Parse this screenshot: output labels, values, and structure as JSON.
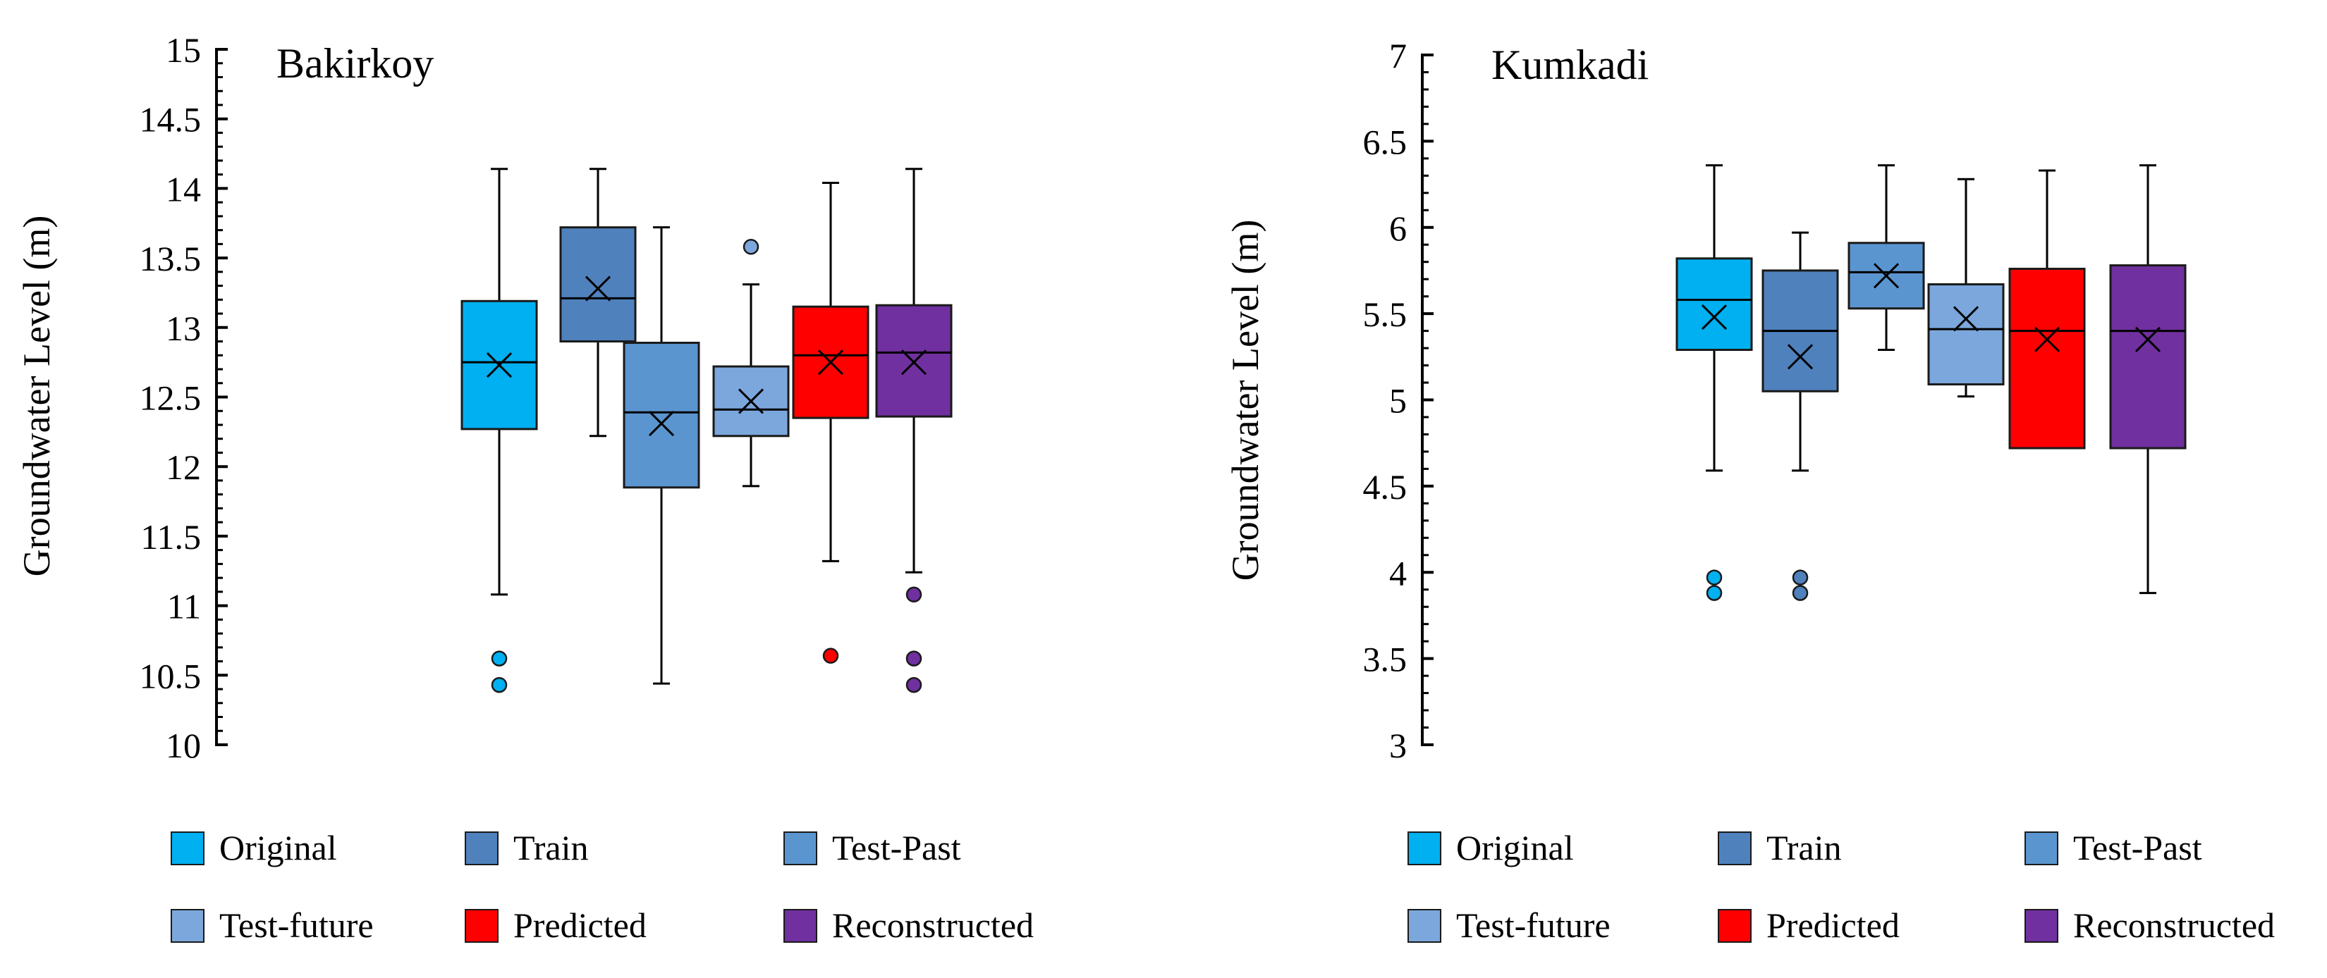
{
  "chart_data": [
    {
      "type": "box",
      "title": "Bakirkoy",
      "ylabel": "Groundwater Level (m)",
      "ylim": [
        10,
        15
      ],
      "yticks": [
        "10",
        "10.5",
        "11",
        "11.5",
        "12",
        "12.5",
        "13",
        "13.5",
        "14",
        "14.5",
        "15"
      ],
      "grid": false,
      "legend_position": "bottom",
      "series": [
        {
          "name": "Original",
          "color": "#00b0f0",
          "min": 11.08,
          "q1": 12.27,
          "median": 12.75,
          "q3": 13.19,
          "max": 14.14,
          "mean": 12.73,
          "outliers": [
            10.62,
            10.43
          ]
        },
        {
          "name": "Train",
          "color": "#4f81bd",
          "min": 12.22,
          "q1": 12.9,
          "median": 13.21,
          "q3": 13.72,
          "max": 14.14,
          "mean": 13.28,
          "outliers": []
        },
        {
          "name": "Test-Past",
          "color": "#5b95d0",
          "min": 10.44,
          "q1": 11.85,
          "median": 12.39,
          "q3": 12.89,
          "max": 13.72,
          "mean": 12.31,
          "outliers": []
        },
        {
          "name": "Test-future",
          "color": "#7ba7dc",
          "min": 11.86,
          "q1": 12.22,
          "median": 12.41,
          "q3": 12.72,
          "max": 13.31,
          "mean": 12.47,
          "outliers": [
            13.58
          ]
        },
        {
          "name": "Predicted",
          "color": "#ff0000",
          "min": 11.32,
          "q1": 12.35,
          "median": 12.8,
          "q3": 13.15,
          "max": 14.04,
          "mean": 12.75,
          "outliers": [
            10.64
          ]
        },
        {
          "name": "Reconstructed",
          "color": "#7030a0",
          "min": 11.24,
          "q1": 12.36,
          "median": 12.82,
          "q3": 13.16,
          "max": 14.14,
          "mean": 12.75,
          "outliers": [
            11.08,
            10.62,
            10.43
          ]
        }
      ]
    },
    {
      "type": "box",
      "title": "Kumkadi",
      "ylabel": "Groundwater Level (m)",
      "ylim": [
        3,
        7
      ],
      "yticks": [
        "3",
        "3.5",
        "4",
        "4.5",
        "5",
        "5.5",
        "6",
        "6.5",
        "7"
      ],
      "grid": false,
      "legend_position": "bottom",
      "series": [
        {
          "name": "Original",
          "color": "#00b0f0",
          "min": 4.59,
          "q1": 5.29,
          "median": 5.58,
          "q3": 5.82,
          "max": 6.36,
          "mean": 5.48,
          "outliers": [
            3.97,
            3.88
          ]
        },
        {
          "name": "Train",
          "color": "#4f81bd",
          "min": 4.59,
          "q1": 5.05,
          "median": 5.4,
          "q3": 5.75,
          "max": 5.97,
          "mean": 5.25,
          "outliers": [
            3.97,
            3.88
          ]
        },
        {
          "name": "Test-Past",
          "color": "#5b95d0",
          "min": 5.29,
          "q1": 5.53,
          "median": 5.74,
          "q3": 5.91,
          "max": 6.36,
          "mean": 5.72,
          "outliers": []
        },
        {
          "name": "Test-future",
          "color": "#7ba7dc",
          "min": 5.02,
          "q1": 5.09,
          "median": 5.41,
          "q3": 5.67,
          "max": 6.28,
          "mean": 5.47,
          "outliers": []
        },
        {
          "name": "Predicted",
          "color": "#ff0000",
          "min": 4.72,
          "q1": 4.72,
          "median": 5.4,
          "q3": 5.76,
          "max": 6.33,
          "mean": 5.35,
          "outliers": []
        },
        {
          "name": "Reconstructed",
          "color": "#7030a0",
          "min": 3.88,
          "q1": 4.72,
          "median": 5.4,
          "q3": 5.78,
          "max": 6.36,
          "mean": 5.35,
          "outliers": []
        }
      ]
    }
  ]
}
